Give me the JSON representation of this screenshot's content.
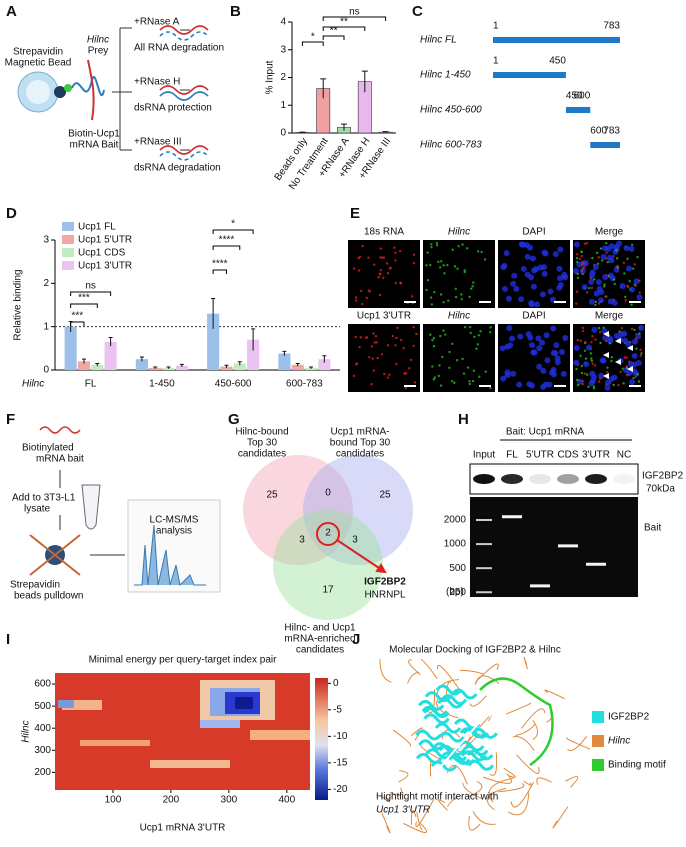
{
  "panel_labels": [
    "A",
    "B",
    "C",
    "D",
    "E",
    "F",
    "G",
    "H",
    "I",
    "J"
  ],
  "panel_a": {
    "bead": [
      "Strepavidin",
      "Magnetic Bead"
    ],
    "prey": [
      "Hilnc",
      "Prey"
    ],
    "bait": [
      "Biotin-Ucp1",
      "mRNA Bait"
    ],
    "treatments": [
      {
        "label": "+RNase A",
        "result": "All RNA degradation"
      },
      {
        "label": "+RNase H",
        "result": "dsRNA protection"
      },
      {
        "label": "+RNase III",
        "result": "dsRNA degradation"
      }
    ]
  },
  "chart_data": [
    {
      "type": "bar",
      "ylabel": "% Input",
      "categories": [
        "Beads only",
        "No Treatment",
        "+RNase A",
        "+RNase H",
        "+RNase III"
      ],
      "values": [
        0.02,
        1.6,
        0.2,
        1.85,
        0.03
      ],
      "errors": [
        0.01,
        0.35,
        0.12,
        0.38,
        0.02
      ],
      "colors": [
        "#dddddd",
        "#f0a0a0",
        "#a8dca8",
        "#e8b8ec",
        "#dddddd"
      ],
      "ylim": [
        0,
        4
      ],
      "yticks": [
        0,
        1,
        2,
        3,
        4
      ],
      "annotations": [
        "*",
        "**",
        "**",
        "ns"
      ]
    },
    {
      "type": "grouped-bar",
      "ylabel": "Relative binding",
      "xlabel": "Hilnc",
      "categories": [
        "FL",
        "1-450",
        "450-600",
        "600-783"
      ],
      "series": [
        {
          "name": "Ucp1 FL",
          "color": "#9cc0ea",
          "values": [
            1.0,
            0.25,
            1.3,
            0.38
          ],
          "errors": [
            0.12,
            0.05,
            0.35,
            0.05
          ]
        },
        {
          "name": "Ucp1 5'UTR",
          "color": "#f4a6a6",
          "values": [
            0.2,
            0.05,
            0.08,
            0.12
          ],
          "errors": [
            0.05,
            0.02,
            0.03,
            0.03
          ]
        },
        {
          "name": "Ucp1 CDS",
          "color": "#c2ecc0",
          "values": [
            0.12,
            0.05,
            0.15,
            0.05
          ],
          "errors": [
            0.03,
            0.02,
            0.04,
            0.02
          ]
        },
        {
          "name": "Ucp1 3'UTR",
          "color": "#ecc2f2",
          "values": [
            0.65,
            0.1,
            0.7,
            0.25
          ],
          "errors": [
            0.1,
            0.03,
            0.25,
            0.08
          ]
        }
      ],
      "ylim": [
        0,
        3
      ],
      "yticks": [
        0,
        1,
        2,
        3
      ],
      "reference_line": 1,
      "annotations": [
        "***",
        "***",
        "ns",
        "****",
        "****",
        "*"
      ]
    }
  ],
  "panel_c": {
    "rows": [
      {
        "name": "Hilnc FL",
        "start": 1,
        "end": 783
      },
      {
        "name": "Hilnc 1-450",
        "start": 1,
        "end": 450
      },
      {
        "name": "Hilnc 450-600",
        "start": 450,
        "end": 600
      },
      {
        "name": "Hilnc 600-783",
        "start": 600,
        "end": 783
      }
    ]
  },
  "panel_e": {
    "rows": [
      {
        "channels": [
          "18s RNA",
          "Hilnc",
          "DAPI",
          "Merge"
        ]
      },
      {
        "channels": [
          "Ucp1 3'UTR",
          "Hilnc",
          "DAPI",
          "Merge"
        ]
      }
    ]
  },
  "panel_f": {
    "steps": [
      [
        "Biotinylated",
        "mRNA bait"
      ],
      [
        "Add to 3T3-L1",
        "lysate"
      ],
      [
        "Strepavidin",
        "beads pulldown"
      ],
      [
        "LC-MS/MS",
        "analysis"
      ]
    ]
  },
  "panel_g": {
    "sets": [
      [
        "Hilnc-bound",
        "Top 30",
        "candidates"
      ],
      [
        "Ucp1 mRNA-",
        "bound Top 30",
        "candidates"
      ],
      [
        "Hilnc- and Ucp1",
        "mRNA-enriched",
        "candidates"
      ]
    ],
    "counts": [
      25,
      0,
      25,
      3,
      2,
      3,
      17
    ],
    "hits": [
      "IGF2BP2",
      "HNRNPL"
    ]
  },
  "panel_h": {
    "header": "Bait: Ucp1 mRNA",
    "lanes": [
      "Input",
      "FL",
      "5'UTR",
      "CDS",
      "3'UTR",
      "NC"
    ],
    "blot_label": [
      "IGF2BP2",
      "70kDa"
    ],
    "gel_label": "Bait",
    "ladder": [
      2000,
      1000,
      500,
      250
    ],
    "ladder_unit": "(bp)"
  },
  "panel_i": {
    "title": "Minimal energy per query-target index pair",
    "xlabel": "Ucp1 mRNA 3'UTR",
    "ylabel": "Hilnc",
    "xlim": [
      0,
      440
    ],
    "xticks": [
      100,
      200,
      300,
      400
    ],
    "ylim": [
      120,
      650
    ],
    "yticks": [
      200,
      300,
      400,
      500,
      600
    ],
    "clim": [
      -22,
      1
    ],
    "cticks": [
      0,
      -5,
      -10,
      -15,
      -20
    ]
  },
  "panel_j": {
    "title": "Molecular Docking of IGF2BP2 & Hilnc",
    "legend": [
      {
        "name": "IGF2BP2",
        "color": "#22dede"
      },
      {
        "name": "Hilnc",
        "color": "#e08a3a"
      },
      {
        "name": "Binding motif",
        "color": "#2ecc2e"
      }
    ],
    "annotation": [
      "Hightlight motif interact with",
      "Ucp1 3'UTR"
    ]
  }
}
